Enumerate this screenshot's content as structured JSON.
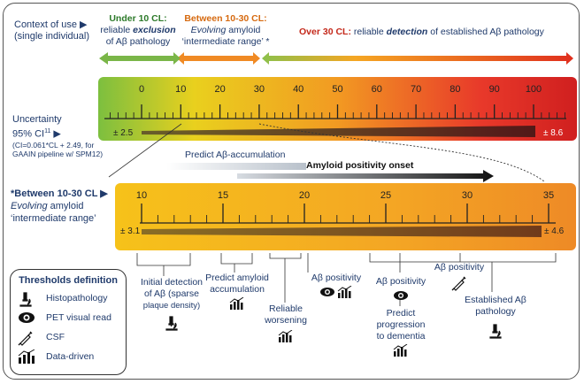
{
  "context": {
    "label_line1": "Context of use ▶",
    "label_line2": "(single individual)"
  },
  "segments": [
    {
      "title": "Under 10 CL:",
      "line2a": "reliable ",
      "line2b": "exclusion",
      "line3": "of Aβ pathology",
      "color": "#7ab648"
    },
    {
      "title": "Between 10-30 CL:",
      "line2a": "Evolving",
      "line2b": " amyloid",
      "line3": "‘intermediate range’ *",
      "color": "#f08a24"
    },
    {
      "title": "Over 30 CL:",
      "line2a": " reliable ",
      "line2b": "detection",
      "line3": " of established Aβ pathology",
      "color": "#e53320"
    }
  ],
  "uncertainty": {
    "line1": "Uncertainty",
    "line2": "95% CI",
    "superscript": "11",
    "arrow": "▶",
    "note1": "(CI=0.061*CL + 2.49, for",
    "note2": "GAAIN pipeline w/ SPM12)"
  },
  "top_scale": {
    "ticks": [
      0,
      10,
      20,
      30,
      40,
      50,
      60,
      70,
      80,
      90,
      100
    ],
    "tick_labels": [
      "0",
      "10",
      "20",
      "30",
      "40",
      "50",
      "60",
      "70",
      "80",
      "90",
      "100"
    ],
    "left_ci": "± 2.5",
    "right_ci": "± 8.6"
  },
  "arrows_mid": {
    "predict": "Predict Aβ-accumulation",
    "onset": "Amyloid positivity onset"
  },
  "intermediate": {
    "line1": "*Between 10-30 CL ▶",
    "line2a": "Evolving",
    "line2b": " amyloid",
    "line3": "‘intermediate range’"
  },
  "bottom_scale": {
    "tick_labels": [
      "10",
      "15",
      "20",
      "25",
      "30",
      "35"
    ],
    "left_ci": "± 3.1",
    "right_ci": "± 4.6"
  },
  "annotations": {
    "initial_detection": [
      "Initial detection",
      "of Aβ (sparse",
      "plaque density)"
    ],
    "predict_accumulation": [
      "Predict amyloid",
      "accumulation"
    ],
    "reliable_worsening": [
      "Reliable",
      "worsening"
    ],
    "abeta_positivity_1": "Aβ positivity",
    "abeta_positivity_2": "Aβ positivity",
    "abeta_positivity_3": "Aβ positivity",
    "predict_progression": [
      "Predict",
      "progression",
      "to dementia"
    ],
    "established": [
      "Established Aβ",
      "pathology"
    ]
  },
  "legend": {
    "title": "Thresholds definition",
    "items": [
      {
        "icon": "microscope-icon",
        "label": "Histopathology"
      },
      {
        "icon": "eye-icon",
        "label": "PET visual read"
      },
      {
        "icon": "syringe-icon",
        "label": "CSF"
      },
      {
        "icon": "bar-chart-icon",
        "label": "Data-driven"
      }
    ]
  },
  "colors": {
    "navy": "#1f3a6b",
    "green": "#7ab648",
    "orange": "#f08a24",
    "red": "#e53320",
    "yellow": "#f5c518"
  }
}
